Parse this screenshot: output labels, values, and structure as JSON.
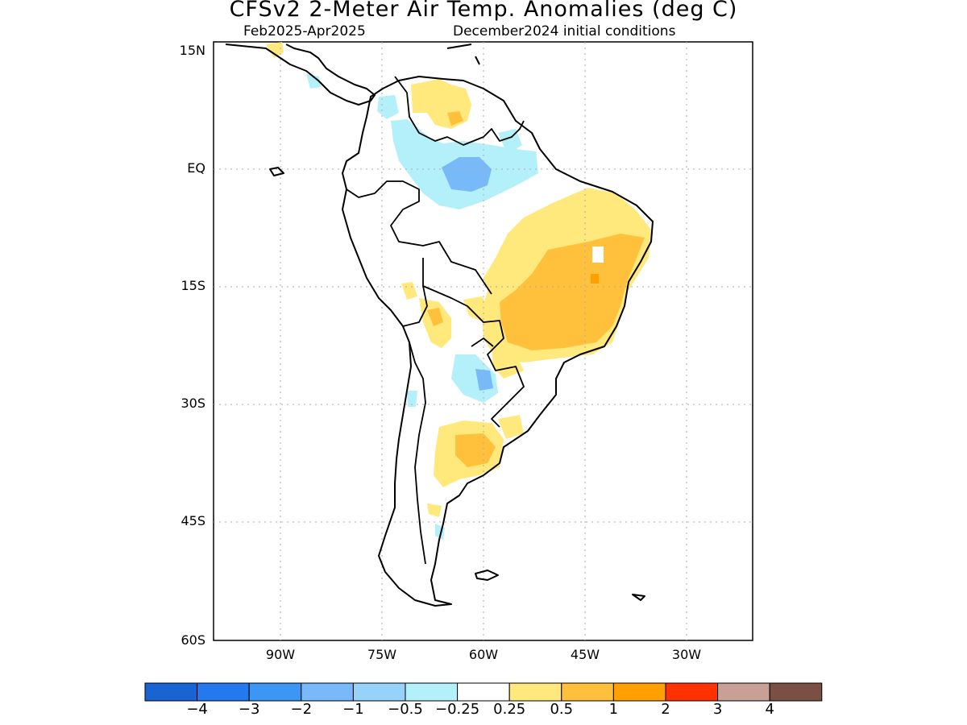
{
  "title": "CFSv2 2-Meter Air Temp. Anomalies (deg C)",
  "subtitle_left": "Feb2025-Apr2025",
  "subtitle_right": "December2024 initial conditions",
  "lat_labels": [
    "15N",
    "EQ",
    "15S",
    "30S",
    "45S",
    "60S"
  ],
  "lon_labels": [
    "90W",
    "75W",
    "60W",
    "45W",
    "30W"
  ],
  "legend": {
    "colors": [
      "#1864d2",
      "#2478f0",
      "#3c96f5",
      "#78b9fa",
      "#96d2fa",
      "#b4f0fa",
      "#ffffff",
      "#ffe87c",
      "#ffc03c",
      "#ffa000",
      "#ff3200",
      "#c8a096",
      "#7a4f44"
    ],
    "labels": [
      "-4",
      "-3",
      "-2",
      "-1",
      "-0.5",
      "-0.25",
      "0.25",
      "0.5",
      "1",
      "2",
      "3",
      "4"
    ]
  }
}
